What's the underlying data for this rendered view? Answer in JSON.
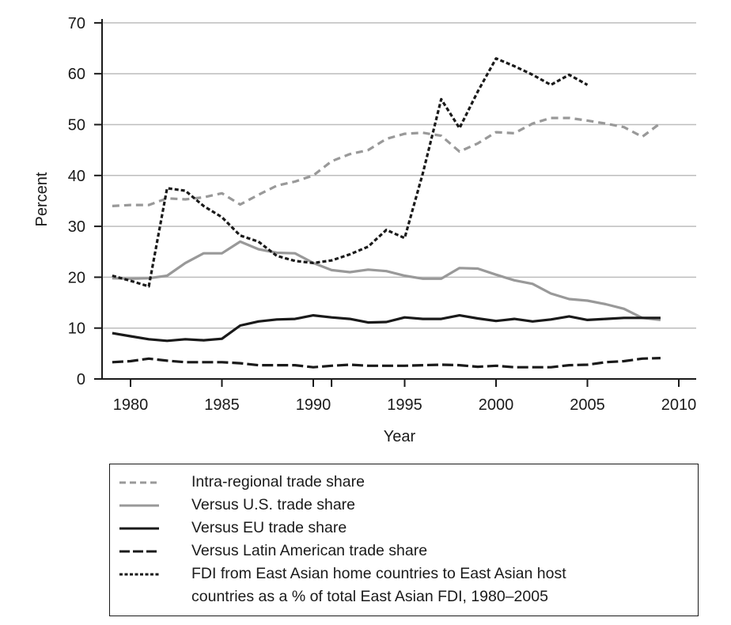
{
  "chart_data": {
    "type": "line",
    "title": "",
    "xlabel": "Year",
    "ylabel": "Percent",
    "xlim": [
      1978.5,
      2011
    ],
    "ylim": [
      0,
      70
    ],
    "xticks": [
      1980,
      1985,
      1990,
      1995,
      2000,
      2005,
      2010
    ],
    "yticks": [
      0,
      10,
      20,
      30,
      40,
      50,
      60,
      70
    ],
    "grid": "horizontal",
    "legend_position": "below",
    "series": [
      {
        "name": "Intra-regional trade share",
        "style": "dashed",
        "color": "#999999",
        "x": [
          1979,
          1980,
          1981,
          1982,
          1983,
          1984,
          1985,
          1986,
          1987,
          1988,
          1989,
          1990,
          1991,
          1992,
          1993,
          1994,
          1995,
          1996,
          1997,
          1998,
          1999,
          2000,
          2001,
          2002,
          2003,
          2004,
          2005,
          2006,
          2007,
          2008,
          2009
        ],
        "values": [
          34.0,
          34.2,
          34.2,
          35.5,
          35.3,
          35.7,
          36.5,
          34.3,
          36.2,
          38.0,
          38.8,
          40.0,
          42.8,
          44.2,
          45.0,
          47.2,
          48.2,
          48.4,
          47.8,
          44.7,
          46.3,
          48.5,
          48.3,
          50.2,
          51.3,
          51.3,
          50.8,
          50.2,
          49.5,
          47.6,
          50.3
        ]
      },
      {
        "name": "Versus U.S. trade share",
        "style": "solid",
        "color": "#999999",
        "x": [
          1979,
          1980,
          1981,
          1982,
          1983,
          1984,
          1985,
          1986,
          1987,
          1988,
          1989,
          1990,
          1991,
          1992,
          1993,
          1994,
          1995,
          1996,
          1997,
          1998,
          1999,
          2000,
          2001,
          2002,
          2003,
          2004,
          2005,
          2006,
          2007,
          2008,
          2009
        ],
        "values": [
          19.8,
          19.7,
          19.8,
          20.3,
          22.8,
          24.7,
          24.7,
          27.0,
          25.5,
          24.8,
          24.7,
          22.8,
          21.4,
          21.0,
          21.5,
          21.2,
          20.3,
          19.7,
          19.7,
          21.8,
          21.7,
          20.5,
          19.4,
          18.7,
          16.8,
          15.7,
          15.4,
          14.7,
          13.8,
          12.0,
          11.6
        ]
      },
      {
        "name": "Versus EU trade share",
        "style": "solid",
        "color": "#1a1a1a",
        "x": [
          1979,
          1980,
          1981,
          1982,
          1983,
          1984,
          1985,
          1986,
          1987,
          1988,
          1989,
          1990,
          1991,
          1992,
          1993,
          1994,
          1995,
          1996,
          1997,
          1998,
          1999,
          2000,
          2001,
          2002,
          2003,
          2004,
          2005,
          2006,
          2007,
          2008,
          2009
        ],
        "values": [
          9.0,
          8.4,
          7.8,
          7.5,
          7.8,
          7.6,
          7.9,
          10.5,
          11.3,
          11.7,
          11.8,
          12.5,
          12.1,
          11.8,
          11.1,
          11.2,
          12.1,
          11.8,
          11.8,
          12.5,
          11.9,
          11.4,
          11.8,
          11.3,
          11.7,
          12.3,
          11.6,
          11.8,
          12.0,
          12.0,
          12.0
        ]
      },
      {
        "name": "Versus Latin American trade share",
        "style": "longdash",
        "color": "#1a1a1a",
        "x": [
          1979,
          1980,
          1981,
          1982,
          1983,
          1984,
          1985,
          1986,
          1987,
          1988,
          1989,
          1990,
          1991,
          1992,
          1993,
          1994,
          1995,
          1996,
          1997,
          1998,
          1999,
          2000,
          2001,
          2002,
          2003,
          2004,
          2005,
          2006,
          2007,
          2008,
          2009
        ],
        "values": [
          3.3,
          3.5,
          4.0,
          3.6,
          3.3,
          3.3,
          3.3,
          3.1,
          2.7,
          2.7,
          2.7,
          2.3,
          2.6,
          2.8,
          2.6,
          2.6,
          2.6,
          2.7,
          2.8,
          2.7,
          2.4,
          2.6,
          2.3,
          2.3,
          2.3,
          2.7,
          2.8,
          3.3,
          3.5,
          4.0,
          4.1
        ]
      },
      {
        "name": "FDI from East Asian home countries to East Asian host countries as a % of total East Asian FDI, 1980–2005",
        "style": "dotted",
        "color": "#1a1a1a",
        "x": [
          1979,
          1980,
          1981,
          1982,
          1983,
          1984,
          1985,
          1986,
          1987,
          1988,
          1989,
          1990,
          1991,
          1992,
          1993,
          1994,
          1995,
          1996,
          1997,
          1998,
          1999,
          2000,
          2001,
          2002,
          2003,
          2004,
          2005
        ],
        "values": [
          20.3,
          19.3,
          18.2,
          37.5,
          37.0,
          34.0,
          31.8,
          28.2,
          27.0,
          24.2,
          23.2,
          22.8,
          23.3,
          24.5,
          26.0,
          29.3,
          27.7,
          40.5,
          55.0,
          49.3,
          56.5,
          63.0,
          61.5,
          59.8,
          57.8,
          59.8,
          57.8
        ]
      }
    ]
  },
  "axes": {
    "xlabel": "Year",
    "ylabel": "Percent",
    "xtick_labels": [
      "1980",
      "1985",
      "1990",
      "1995",
      "2000",
      "2005",
      "2010"
    ],
    "ytick_labels": [
      "0",
      "10",
      "20",
      "30",
      "40",
      "50",
      "60",
      "70"
    ]
  },
  "legend": {
    "items": [
      {
        "label": "Intra-regional trade share"
      },
      {
        "label": "Versus U.S. trade share"
      },
      {
        "label": "Versus EU trade share"
      },
      {
        "label": "Versus Latin American trade share"
      },
      {
        "label": "FDI from East Asian home countries to East Asian host",
        "label_line2": "countries as a % of total East Asian FDI, 1980–2005"
      }
    ]
  }
}
